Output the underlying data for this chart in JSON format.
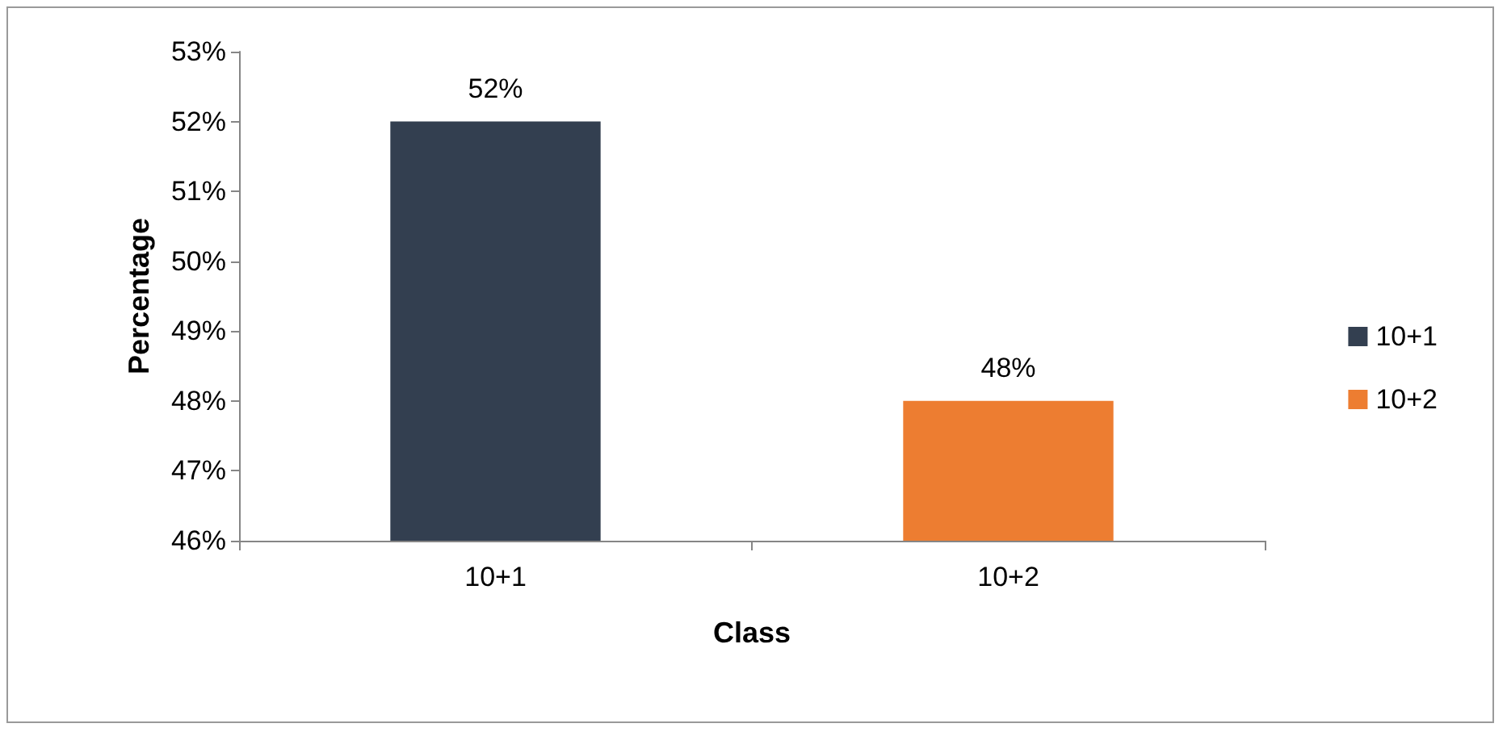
{
  "chart_data": {
    "type": "bar",
    "xlabel": "Class",
    "ylabel": "Percentage",
    "categories": [
      "10+1",
      "10+2"
    ],
    "series": [
      {
        "name": "10+1",
        "color": "#333f50",
        "values": [
          52,
          null
        ],
        "value_labels": [
          "52%",
          null
        ]
      },
      {
        "name": "10+2",
        "color": "#ed7d31",
        "values": [
          null,
          48
        ],
        "value_labels": [
          null,
          "48%"
        ]
      }
    ],
    "ylim": [
      46,
      53
    ],
    "yticks": [
      {
        "value": 46,
        "label": "46%"
      },
      {
        "value": 47,
        "label": "47%"
      },
      {
        "value": 48,
        "label": "48%"
      },
      {
        "value": 49,
        "label": "49%"
      },
      {
        "value": 50,
        "label": "50%"
      },
      {
        "value": 51,
        "label": "51%"
      },
      {
        "value": 52,
        "label": "52%"
      },
      {
        "value": 53,
        "label": "53%"
      }
    ],
    "grid": false,
    "legend": "right"
  }
}
